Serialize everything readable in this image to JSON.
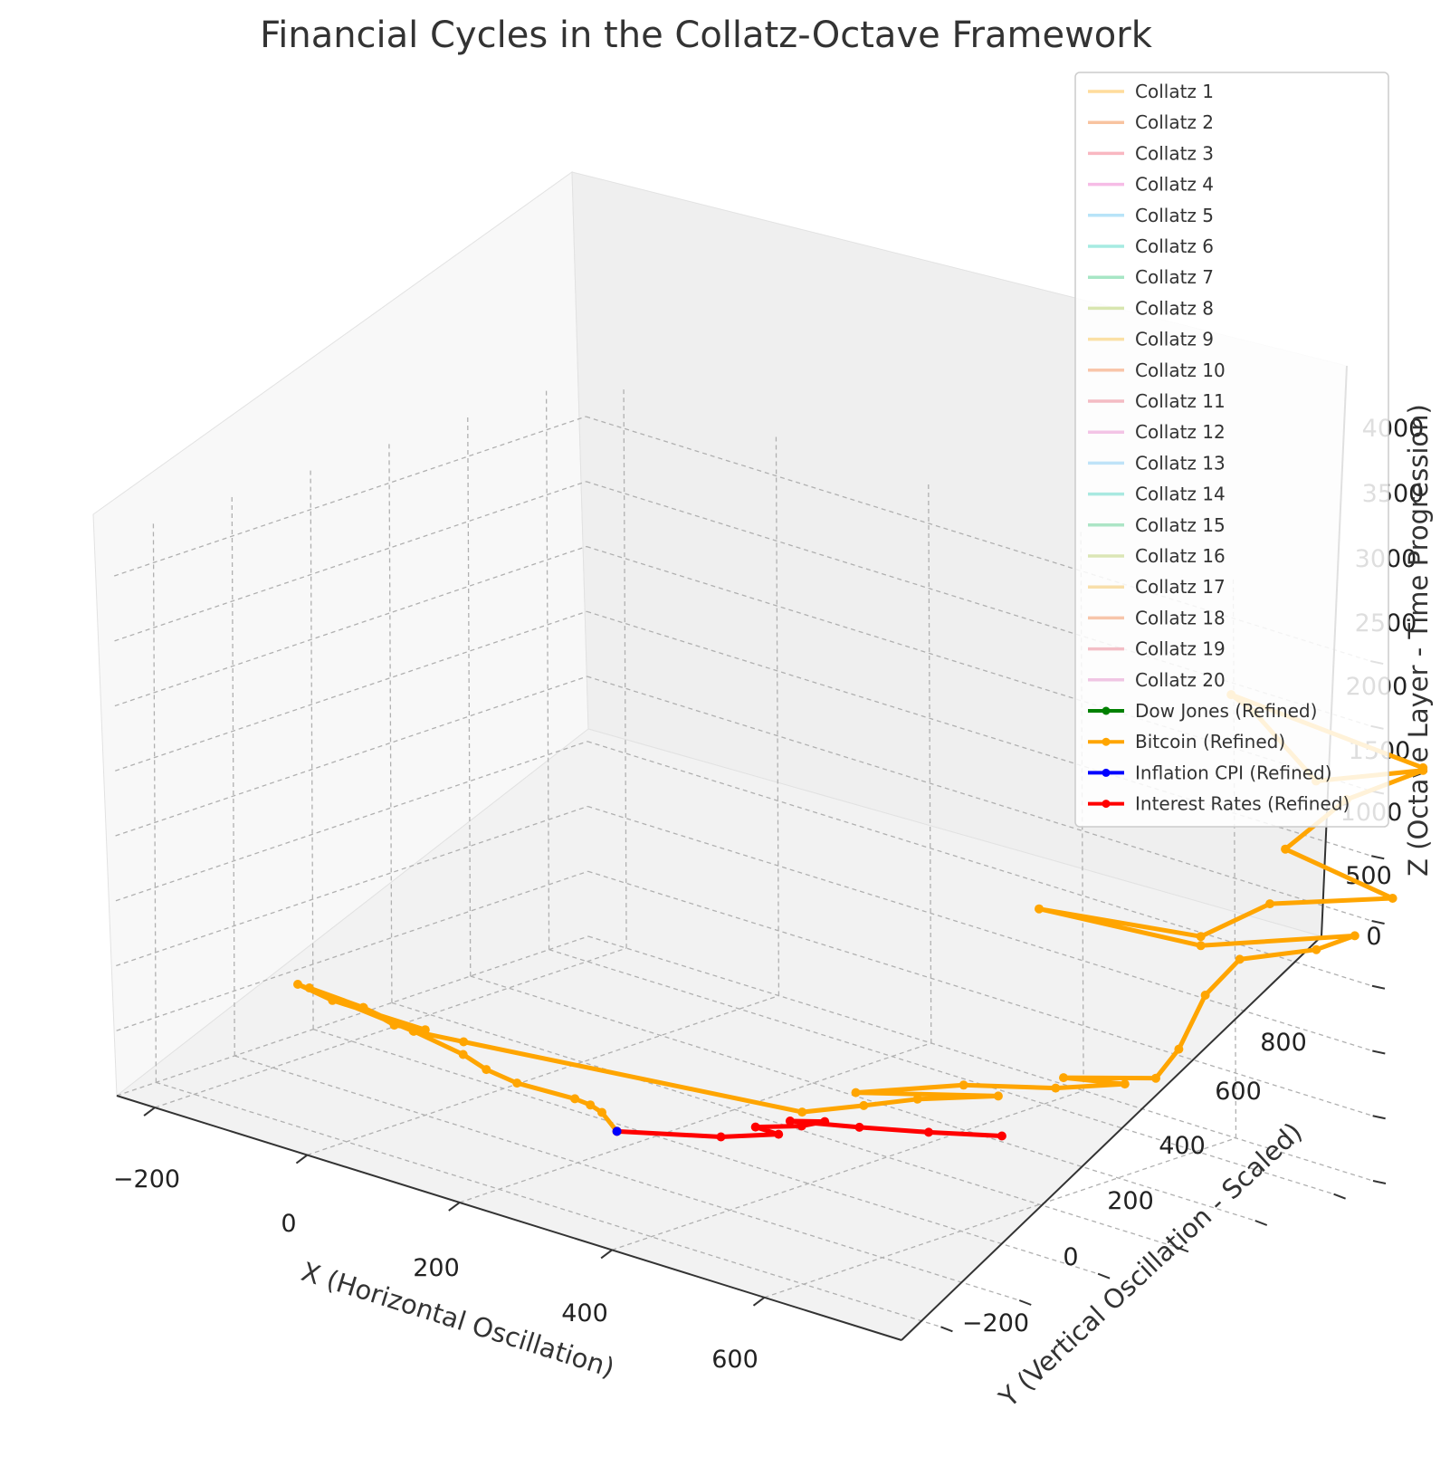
{
  "chart_data": {
    "type": "line3d",
    "title": "Financial Cycles in the Collatz-Octave Framework",
    "xlabel": "X (Horizontal Oscillation)",
    "ylabel": "Y (Vertical Oscillation - Scaled)",
    "zlabel": "Z (Octave Layer - Time Progression)",
    "x_ticks": [
      "−200",
      "0",
      "200",
      "400",
      "600"
    ],
    "y_ticks": [
      "−200",
      "0",
      "200",
      "400",
      "600",
      "800"
    ],
    "z_ticks": [
      "0",
      "500",
      "1000",
      "1500",
      "2000",
      "2500",
      "3000",
      "3500",
      "4000"
    ],
    "xlim": [
      -250,
      780
    ],
    "ylim": [
      -300,
      900
    ],
    "zlim": [
      0,
      4300
    ],
    "grid": true,
    "legend_position": "top-right",
    "legend": [
      {
        "label": "Collatz 1",
        "color": "#ffdc9c"
      },
      {
        "label": "Collatz 2",
        "color": "#f8c3a0"
      },
      {
        "label": "Collatz 3",
        "color": "#f9b7c1"
      },
      {
        "label": "Collatz 4",
        "color": "#f6bce6"
      },
      {
        "label": "Collatz 5",
        "color": "#b8e4f8"
      },
      {
        "label": "Collatz 6",
        "color": "#a6ebe2"
      },
      {
        "label": "Collatz 7",
        "color": "#a7e6c5"
      },
      {
        "label": "Collatz 8",
        "color": "#d8e6b0"
      },
      {
        "label": "Collatz 9",
        "color": "#fbe0a5"
      },
      {
        "label": "Collatz 10",
        "color": "#f9c6aa"
      },
      {
        "label": "Collatz 11",
        "color": "#f4bcc4"
      },
      {
        "label": "Collatz 12",
        "color": "#f3c4e6"
      },
      {
        "label": "Collatz 13",
        "color": "#bfe3f8"
      },
      {
        "label": "Collatz 14",
        "color": "#a9e9e1"
      },
      {
        "label": "Collatz 15",
        "color": "#ace5c6"
      },
      {
        "label": "Collatz 16",
        "color": "#dbe6b6"
      },
      {
        "label": "Collatz 17",
        "color": "#f8dfaa"
      },
      {
        "label": "Collatz 18",
        "color": "#f7c5aa"
      },
      {
        "label": "Collatz 19",
        "color": "#f3bec6"
      },
      {
        "label": "Collatz 20",
        "color": "#f0c6e4"
      },
      {
        "label": "Dow Jones (Refined)",
        "color": "#008000",
        "marker": true
      },
      {
        "label": "Bitcoin (Refined)",
        "color": "#ffa500",
        "marker": true
      },
      {
        "label": "Inflation CPI (Refined)",
        "color": "#0000ff",
        "marker": true
      },
      {
        "label": "Interest Rates (Refined)",
        "color": "#ff0000",
        "marker": true
      }
    ],
    "series": [
      {
        "name": "Bitcoin (Refined)",
        "color": "#ffa500",
        "points": [
          [
            190,
            120,
            100
          ],
          [
            160,
            140,
            170
          ],
          [
            150,
            130,
            220
          ],
          [
            140,
            110,
            270
          ],
          [
            90,
            60,
            350
          ],
          [
            60,
            40,
            420
          ],
          [
            40,
            20,
            520
          ],
          [
            -10,
            -10,
            640
          ],
          [
            -60,
            -40,
            760
          ],
          [
            -110,
            -80,
            860
          ],
          [
            -70,
            -20,
            720
          ],
          [
            -40,
            0,
            620
          ],
          [
            -20,
            40,
            580
          ],
          [
            -90,
            -60,
            780
          ],
          [
            -120,
            -90,
            880
          ],
          [
            -30,
            30,
            560
          ],
          [
            20,
            60,
            540
          ],
          [
            330,
            320,
            300
          ],
          [
            380,
            380,
            380
          ],
          [
            430,
            420,
            480
          ],
          [
            500,
            490,
            560
          ],
          [
            380,
            360,
            500
          ],
          [
            470,
            460,
            620
          ],
          [
            560,
            520,
            700
          ],
          [
            620,
            580,
            780
          ],
          [
            560,
            540,
            760
          ],
          [
            640,
            620,
            820
          ],
          [
            660,
            640,
            1060
          ],
          [
            690,
            650,
            1520
          ],
          [
            720,
            680,
            1820
          ],
          [
            800,
            720,
            2000
          ],
          [
            830,
            760,
            2120
          ],
          [
            700,
            620,
            1950
          ],
          [
            560,
            480,
            2120
          ],
          [
            700,
            620,
            2020
          ],
          [
            760,
            680,
            2320
          ],
          [
            880,
            760,
            2500
          ],
          [
            760,
            720,
            2700
          ],
          [
            820,
            760,
            3150
          ],
          [
            900,
            800,
            3480
          ],
          [
            780,
            760,
            3220
          ],
          [
            720,
            720,
            3680
          ],
          [
            700,
            700,
            3800
          ],
          [
            900,
            800,
            3500
          ]
        ]
      },
      {
        "name": "Interest Rates (Refined)",
        "color": "#ff0000",
        "points": [
          [
            190,
            120,
            100
          ],
          [
            280,
            210,
            130
          ],
          [
            330,
            260,
            190
          ],
          [
            310,
            240,
            230
          ],
          [
            350,
            280,
            270
          ],
          [
            370,
            300,
            320
          ],
          [
            340,
            270,
            300
          ],
          [
            400,
            330,
            300
          ],
          [
            460,
            390,
            310
          ],
          [
            520,
            460,
            320
          ]
        ]
      },
      {
        "name": "Inflation CPI (Refined)",
        "color": "#0000ff",
        "points": [
          [
            190,
            120,
            100
          ]
        ]
      }
    ]
  }
}
